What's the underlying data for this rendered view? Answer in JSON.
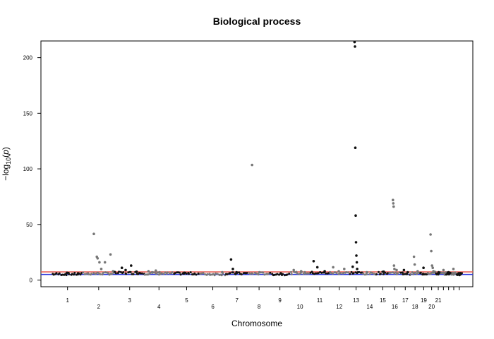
{
  "chart_data": {
    "type": "scatter",
    "title": "Biological process",
    "xlabel": "Chromosome",
    "ylabel_prefix": "−log",
    "ylabel_sub": "10",
    "ylabel_var": "p",
    "ylim": [
      -6,
      215
    ],
    "y_ticks": [
      0,
      50,
      100,
      150,
      200
    ],
    "threshold_lines": [
      {
        "value": 7.3,
        "color": "#e8584f"
      },
      {
        "value": 5,
        "color": "#2f3bdc"
      }
    ],
    "point_colors": {
      "odd": "#111111",
      "even": "#777777"
    },
    "chromosomes": [
      {
        "label": "1",
        "start": 0.0,
        "end": 0.083,
        "baseline": 5.5,
        "peaks": [
          [
            0.04,
            6.5
          ],
          [
            0.07,
            6
          ]
        ]
      },
      {
        "label": "2",
        "start": 0.083,
        "end": 0.169,
        "baseline": 6,
        "peaks": [
          [
            0.03,
            41.5
          ],
          [
            0.038,
            21
          ],
          [
            0.04,
            19.5
          ],
          [
            0.045,
            16
          ],
          [
            0.05,
            10
          ],
          [
            0.06,
            16
          ],
          [
            0.075,
            23
          ],
          [
            0.082,
            8
          ]
        ]
      },
      {
        "label": "3",
        "start": 0.169,
        "end": 0.251,
        "baseline": 6.5,
        "peaks": [
          [
            0.02,
            11
          ],
          [
            0.03,
            9
          ],
          [
            0.045,
            13
          ],
          [
            0.06,
            7.5
          ]
        ]
      },
      {
        "label": "4",
        "start": 0.251,
        "end": 0.328,
        "baseline": 6,
        "peaks": [
          [
            0.01,
            8
          ],
          [
            0.02,
            7
          ],
          [
            0.03,
            8.5
          ],
          [
            0.04,
            7
          ]
        ]
      },
      {
        "label": "5",
        "start": 0.328,
        "end": 0.401,
        "baseline": 6,
        "peaks": [
          [
            0.03,
            6.5
          ]
        ]
      },
      {
        "label": "6",
        "start": 0.401,
        "end": 0.47,
        "baseline": 5.5,
        "peaks": [
          [
            0.06,
            7
          ]
        ]
      },
      {
        "label": "7",
        "start": 0.47,
        "end": 0.532,
        "baseline": 6,
        "peaks": [
          [
            0.015,
            18.5
          ],
          [
            0.02,
            10
          ],
          [
            0.03,
            7
          ]
        ]
      },
      {
        "label": "8",
        "start": 0.532,
        "end": 0.59,
        "baseline": 6,
        "peaks": [
          [
            0.01,
            103.5
          ],
          [
            0.03,
            7
          ]
        ]
      },
      {
        "label": "9",
        "start": 0.59,
        "end": 0.645,
        "baseline": 5.5,
        "peaks": [
          [
            0.03,
            6
          ]
        ]
      },
      {
        "label": "10",
        "start": 0.645,
        "end": 0.699,
        "baseline": 6.5,
        "peaks": [
          [
            0.01,
            9
          ],
          [
            0.03,
            8
          ],
          [
            0.04,
            7
          ]
        ]
      },
      {
        "label": "11",
        "start": 0.699,
        "end": 0.752,
        "baseline": 6.5,
        "peaks": [
          [
            0.01,
            17
          ],
          [
            0.02,
            11.5
          ],
          [
            0.04,
            8
          ]
        ]
      },
      {
        "label": "12",
        "start": 0.752,
        "end": 0.805,
        "baseline": 6.5,
        "peaks": [
          [
            0.01,
            11.5
          ],
          [
            0.025,
            8
          ],
          [
            0.04,
            10
          ]
        ]
      },
      {
        "label": "13",
        "start": 0.805,
        "end": 0.843,
        "baseline": 6.5,
        "peaks": [
          [
            0.015,
            214
          ],
          [
            0.016,
            210
          ],
          [
            0.017,
            119
          ],
          [
            0.018,
            58
          ],
          [
            0.019,
            34
          ],
          [
            0.02,
            22
          ],
          [
            0.021,
            16
          ],
          [
            0.022,
            10
          ],
          [
            0.01,
            12
          ]
        ]
      },
      {
        "label": "14",
        "start": 0.843,
        "end": 0.879,
        "baseline": 6,
        "peaks": [
          [
            0.01,
            7
          ]
        ]
      },
      {
        "label": "15",
        "start": 0.879,
        "end": 0.914,
        "baseline": 6.5,
        "peaks": [
          [
            0.02,
            7.5
          ]
        ]
      },
      {
        "label": "16",
        "start": 0.914,
        "end": 0.944,
        "baseline": 6.5,
        "peaks": [
          [
            0.01,
            72
          ],
          [
            0.011,
            69
          ],
          [
            0.012,
            66
          ],
          [
            0.013,
            13
          ],
          [
            0.014,
            10
          ],
          [
            0.02,
            9
          ]
        ]
      },
      {
        "label": "17",
        "start": 0.944,
        "end": 0.971,
        "baseline": 6,
        "peaks": [
          [
            0.01,
            9
          ],
          [
            0.02,
            7
          ]
        ]
      },
      {
        "label": "18",
        "start": 0.971,
        "end": 0.997,
        "baseline": 6,
        "peaks": [
          [
            0.01,
            21
          ],
          [
            0.012,
            14
          ],
          [
            0.02,
            8
          ]
        ]
      },
      {
        "label": "19",
        "start": 0.997,
        "end": 1.018,
        "baseline": 6,
        "peaks": [
          [
            0.01,
            11
          ]
        ]
      },
      {
        "label": "20",
        "start": 1.018,
        "end": 1.04,
        "baseline": 6.5,
        "peaks": [
          [
            0.008,
            41
          ],
          [
            0.01,
            26
          ],
          [
            0.012,
            13
          ],
          [
            0.014,
            11
          ],
          [
            0.016,
            8
          ]
        ]
      },
      {
        "label": "21",
        "start": 1.04,
        "end": 1.054,
        "baseline": 6,
        "peaks": [
          [
            0.008,
            7
          ]
        ]
      },
      {
        "label": "",
        "start": 1.054,
        "end": 1.068,
        "baseline": 6,
        "peaks": [
          [
            0.007,
            9
          ]
        ]
      },
      {
        "label": "",
        "start": 1.068,
        "end": 1.082,
        "baseline": 6,
        "peaks": [
          [
            0.007,
            7
          ]
        ]
      },
      {
        "label": "",
        "start": 1.082,
        "end": 1.096,
        "baseline": 6,
        "peaks": [
          [
            0.006,
            10
          ]
        ]
      },
      {
        "label": "",
        "start": 1.096,
        "end": 1.112,
        "baseline": 5.5,
        "peaks": [
          [
            0.006,
            6
          ]
        ]
      }
    ]
  }
}
